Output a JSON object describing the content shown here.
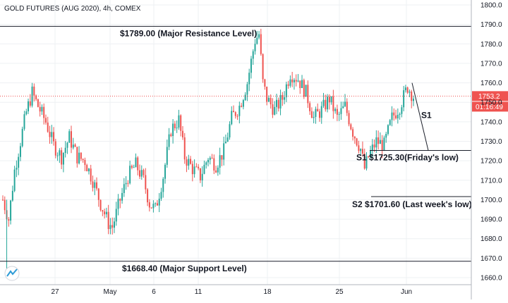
{
  "header": {
    "title": "GOLD FUTURES (AUG 2020), 4h, COMEX"
  },
  "chart_data": {
    "type": "candlestick",
    "title": "GOLD FUTURES (AUG 2020), 4h, COMEX",
    "ylim": [
      1656,
      1804
    ],
    "y_ticks": [
      1660.0,
      1670.0,
      1680.0,
      1690.0,
      1700.0,
      1710.0,
      1720.0,
      1730.0,
      1740.0,
      1750.0,
      1760.0,
      1770.0,
      1780.0,
      1790.0,
      1800.0
    ],
    "x_ticks": [
      "27",
      "May",
      "6",
      "11",
      "18",
      "25",
      "Jun"
    ],
    "grid": true,
    "colors": {
      "up": "#26a69a",
      "down": "#ef5350",
      "grid": "#eef0f3",
      "line": "#1b1f2a",
      "price": "#ef5350"
    },
    "current_price": {
      "value": 1753.2,
      "label": "1753.2",
      "countdown": "01:16:49"
    },
    "levels": [
      {
        "name": "major-resistance",
        "price": 1789.0,
        "label": "$1789.00 (Major Resistance Level)"
      },
      {
        "name": "major-support",
        "price": 1668.4,
        "label": "$1668.40 (Major Support Level)"
      },
      {
        "name": "s1",
        "price": 1725.3,
        "label": "S1 $1725.30(Friday's low)"
      },
      {
        "name": "s2",
        "price": 1701.6,
        "label": "S2 $1701.60 (Last week's low)"
      }
    ],
    "trend_label": "S1",
    "path_points": [
      [
        0,
        1700
      ],
      [
        3,
        1690
      ],
      [
        6,
        1715
      ],
      [
        9,
        1730
      ],
      [
        12,
        1745
      ],
      [
        15,
        1755
      ],
      [
        18,
        1748
      ],
      [
        22,
        1740
      ],
      [
        26,
        1728
      ],
      [
        30,
        1722
      ],
      [
        34,
        1732
      ],
      [
        38,
        1722
      ],
      [
        42,
        1720
      ],
      [
        46,
        1710
      ],
      [
        50,
        1698
      ],
      [
        54,
        1688
      ],
      [
        56,
        1686
      ],
      [
        60,
        1700
      ],
      [
        64,
        1712
      ],
      [
        68,
        1718
      ],
      [
        72,
        1710
      ],
      [
        75,
        1698
      ],
      [
        78,
        1695
      ],
      [
        82,
        1712
      ],
      [
        86,
        1736
      ],
      [
        90,
        1741
      ],
      [
        93,
        1722
      ],
      [
        97,
        1716
      ],
      [
        101,
        1712
      ],
      [
        105,
        1722
      ],
      [
        109,
        1718
      ],
      [
        113,
        1725
      ],
      [
        117,
        1742
      ],
      [
        121,
        1748
      ],
      [
        125,
        1760
      ],
      [
        129,
        1782
      ],
      [
        131,
        1785
      ],
      [
        133,
        1760
      ],
      [
        135,
        1752
      ],
      [
        139,
        1746
      ],
      [
        143,
        1752
      ],
      [
        147,
        1765
      ],
      [
        151,
        1762
      ],
      [
        155,
        1755
      ],
      [
        159,
        1742
      ],
      [
        163,
        1746
      ],
      [
        167,
        1752
      ],
      [
        171,
        1742
      ],
      [
        175,
        1748
      ],
      [
        179,
        1735
      ],
      [
        183,
        1726
      ],
      [
        185,
        1716
      ],
      [
        187,
        1722
      ],
      [
        191,
        1730
      ],
      [
        195,
        1728
      ],
      [
        199,
        1742
      ],
      [
        203,
        1748
      ],
      [
        207,
        1758
      ],
      [
        210,
        1753
      ]
    ]
  }
}
